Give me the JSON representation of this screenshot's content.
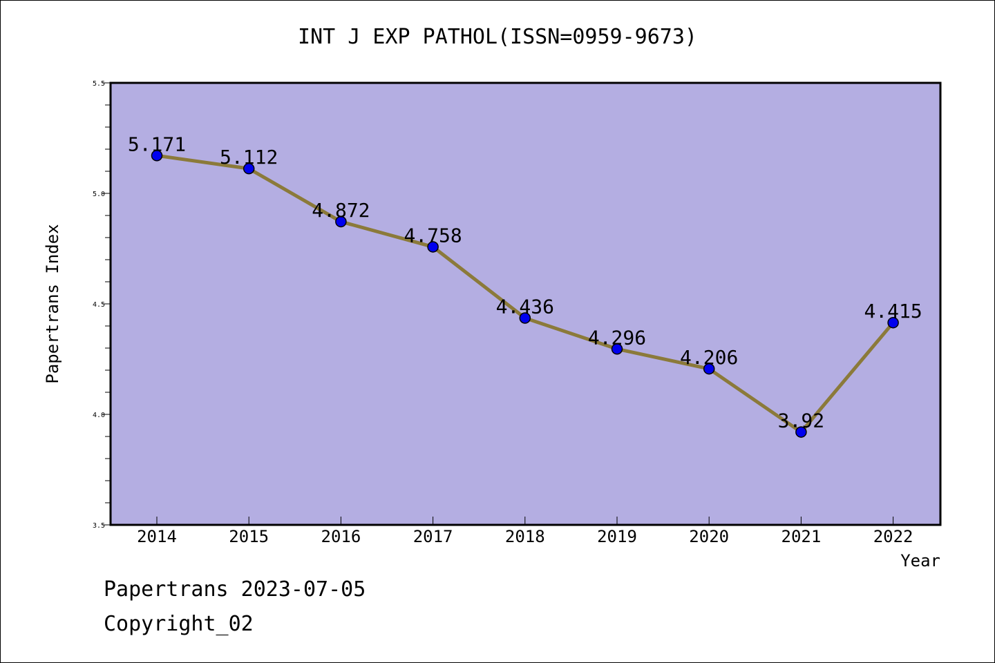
{
  "chart_data": {
    "type": "line",
    "title": "INT J EXP PATHOL(ISSN=0959-9673)",
    "xlabel": "Year",
    "ylabel": "Papertrans Index",
    "categories": [
      "2014",
      "2015",
      "2016",
      "2017",
      "2018",
      "2019",
      "2020",
      "2021",
      "2022"
    ],
    "series": [
      {
        "values": [
          5.171,
          5.112,
          4.872,
          4.758,
          4.436,
          4.296,
          4.206,
          3.92,
          4.415
        ],
        "labels": [
          "5.171",
          "5.112",
          "4.872",
          "4.758",
          "4.436",
          "4.296",
          "4.206",
          "3.92",
          "4.415"
        ]
      }
    ],
    "ylim": [
      3.5,
      5.5
    ],
    "yticks": [
      "3.5",
      "4.0",
      "4.5",
      "5.0",
      "5.5"
    ],
    "grid": false,
    "legend": "none",
    "colors": {
      "plot_background": "#b4aee2",
      "line": "#8b7a3a",
      "marker": "#0000ee"
    }
  },
  "footer": {
    "line1": "Papertrans 2023-07-05",
    "line2": "Copyright_02"
  }
}
